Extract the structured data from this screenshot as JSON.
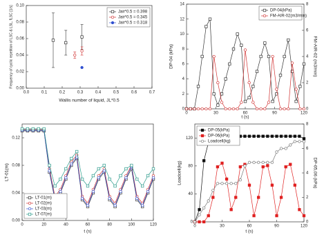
{
  "chart_data": [
    {
      "type": "scatter",
      "x_label": "Wallis number of liquid, JL*0.5",
      "y_label": "Frequency of cyclic repetition of LSC & LSL, fLSC [1/s]",
      "xlim": [
        0.0,
        0.7
      ],
      "xticks": [
        {
          "value": 0.0,
          "label": "0.0"
        },
        0.1,
        0.2,
        0.3,
        0.4,
        0.5,
        0.6,
        0.7
      ],
      "ylim": [
        0.0,
        0.1
      ],
      "yticks": [
        {
          "value": 0.0,
          "label": "0.00"
        },
        0.02,
        0.04,
        0.06,
        0.08,
        {
          "value": 0.1,
          "label": "0.10"
        }
      ],
      "legend": "upper right",
      "series": [
        {
          "name": "Jair*0.5 = 0.398",
          "color": "#333333",
          "marker": "square",
          "x": [
            0.15,
            0.22,
            0.31
          ],
          "values": [
            0.058,
            0.055,
            0.062
          ],
          "errors": [
            0.033,
            0.015,
            0.015
          ]
        },
        {
          "name": "Jair*0.5 = 0.345",
          "color": "#d03030",
          "marker": "circle",
          "x": [
            0.27,
            0.31
          ],
          "values": [
            0.04,
            0.045
          ],
          "errors": [
            0.004,
            0.005
          ]
        },
        {
          "name": "Jair*0.5 = 0.318",
          "color": "#3050d0",
          "marker": "filled-circle",
          "x": [
            0.31
          ],
          "values": [
            0.025
          ],
          "errors": [
            0
          ]
        }
      ]
    },
    {
      "type": "line",
      "x_label": "t (s)",
      "y_label": "DP-04 (kPa)",
      "y2_label": "FM-AIR-02 (m3/min)",
      "xlim": [
        0,
        120
      ],
      "xticks": [
        0,
        30,
        60,
        90,
        120
      ],
      "ylim": [
        0,
        14
      ],
      "yticks": [
        0,
        2,
        4,
        6,
        8,
        10,
        12,
        14
      ],
      "y2lim": [
        0,
        8
      ],
      "y2ticks": [
        0,
        2,
        4,
        6,
        8
      ],
      "legend": "upper right",
      "x": [
        0,
        4,
        8,
        12,
        16,
        20,
        24,
        28,
        32,
        36,
        40,
        44,
        48,
        52,
        56,
        60,
        64,
        68,
        72,
        76,
        80,
        84,
        88,
        92,
        96,
        100,
        104,
        108,
        112,
        116,
        120
      ],
      "series": [
        {
          "name": "DP-04(kPa)",
          "color": "#333333",
          "marker": "square",
          "values": [
            0,
            0,
            0,
            3,
            7,
            11,
            12,
            2,
            0.5,
            2,
            4,
            6,
            8,
            10,
            8.5,
            1,
            1.5,
            3,
            5,
            7,
            8.8,
            7,
            1,
            2,
            4.5,
            7,
            9.2,
            5,
            1,
            3,
            6
          ]
        },
        {
          "name": "FM-AIR-02(m3/min)",
          "color": "#d03030",
          "marker": "circle",
          "axis": "y2",
          "values": [
            0,
            0,
            0,
            0,
            0,
            0,
            0,
            4,
            2,
            0.5,
            0,
            0,
            0,
            0,
            0.5,
            4.5,
            2,
            0.5,
            0,
            0,
            0,
            0.5,
            4,
            1.5,
            0,
            0,
            0,
            3.5,
            1.5,
            0,
            0
          ]
        }
      ]
    },
    {
      "type": "line",
      "x_label": "t (s)",
      "y_label": "LT-01(m)",
      "xlim": [
        0,
        120
      ],
      "xticks": [
        0,
        20,
        40,
        60,
        80,
        100,
        120
      ],
      "ylim": [
        0,
        0.14
      ],
      "yticks": [
        {
          "value": 0,
          "label": "0.00"
        },
        0.04,
        0.08,
        0.12
      ],
      "legend": "lower left",
      "x": [
        0,
        5,
        10,
        15,
        20,
        25,
        30,
        35,
        40,
        45,
        50,
        55,
        60,
        65,
        70,
        75,
        80,
        85,
        90,
        95,
        100,
        105,
        110,
        115,
        120
      ],
      "series": [
        {
          "name": "LT-01(m)",
          "color": "#333333",
          "marker": "square",
          "values": [
            0.13,
            0.13,
            0.13,
            0.13,
            0.13,
            0.07,
            0.03,
            0.04,
            0.06,
            0.08,
            0.09,
            0.03,
            0.02,
            0.04,
            0.06,
            0.07,
            0.03,
            0.02,
            0.04,
            0.06,
            0.075,
            0.03,
            0.02,
            0.04,
            0.06
          ]
        },
        {
          "name": "LT-02(m)",
          "color": "#d03030",
          "marker": "circle",
          "values": [
            0.132,
            0.132,
            0.132,
            0.132,
            0.132,
            0.075,
            0.035,
            0.045,
            0.065,
            0.085,
            0.095,
            0.035,
            0.025,
            0.045,
            0.065,
            0.075,
            0.035,
            0.025,
            0.045,
            0.065,
            0.08,
            0.035,
            0.025,
            0.045,
            0.065
          ]
        },
        {
          "name": "LT-03(m)",
          "color": "#3050d0",
          "marker": "circle",
          "values": [
            0.131,
            0.131,
            0.131,
            0.131,
            0.131,
            0.072,
            0.032,
            0.042,
            0.062,
            0.082,
            0.092,
            0.032,
            0.022,
            0.042,
            0.062,
            0.072,
            0.032,
            0.022,
            0.042,
            0.062,
            0.078,
            0.032,
            0.022,
            0.042,
            0.062
          ]
        },
        {
          "name": "LT-07(m)",
          "color": "#2a9a8a",
          "marker": "square",
          "values": [
            0.133,
            0.133,
            0.133,
            0.133,
            0.133,
            0.08,
            0.05,
            0.06,
            0.075,
            0.09,
            0.1,
            0.06,
            0.05,
            0.065,
            0.075,
            0.08,
            0.06,
            0.05,
            0.065,
            0.075,
            0.08,
            0.06,
            0.05,
            0.065,
            0.075
          ]
        }
      ]
    },
    {
      "type": "line",
      "x_label": "t (s)",
      "y_label": "Loadcell(kg)",
      "y2_label": "DP-05,06 (kPa)",
      "xlim": [
        0,
        120
      ],
      "xticks": [
        0,
        30,
        60,
        90,
        120
      ],
      "ylim": [
        0,
        140
      ],
      "yticks": [
        0,
        40,
        80,
        120
      ],
      "y2lim": [
        0,
        8
      ],
      "y2ticks": [
        0,
        2,
        4,
        6,
        8
      ],
      "legend": "upper left",
      "x": [
        0,
        5,
        10,
        15,
        20,
        25,
        30,
        35,
        40,
        45,
        50,
        55,
        60,
        65,
        70,
        75,
        80,
        85,
        90,
        95,
        100,
        105,
        110,
        115,
        120
      ],
      "series": [
        {
          "name": "DP-05(kPa)",
          "color": "#111111",
          "marker": "filled-square",
          "axis": "y2",
          "values": [
            0,
            1,
            5,
            6.5,
            6.8,
            7,
            7,
            7,
            7,
            7.1,
            7,
            7,
            7,
            7,
            7,
            7,
            7,
            7,
            7,
            7,
            7,
            7,
            7,
            7,
            6.8
          ]
        },
        {
          "name": "DP-06(kPa)",
          "color": "#e02020",
          "marker": "filled-square",
          "axis": "y2",
          "values": [
            0,
            0,
            0,
            0.5,
            2,
            4.5,
            4.8,
            3.5,
            1,
            2,
            4.5,
            4.7,
            3,
            0.5,
            2,
            4.5,
            4.6,
            3,
            0.5,
            2,
            4.5,
            4.7,
            3,
            1,
            0.5
          ]
        },
        {
          "name": "Loadcell(kg)",
          "color": "#777777",
          "marker": "circle",
          "values": [
            0,
            10,
            20,
            30,
            45,
            55,
            55,
            55,
            55,
            55,
            60,
            80,
            85,
            85,
            85,
            85,
            85,
            85,
            100,
            105,
            105,
            110,
            115,
            115,
            115
          ]
        }
      ]
    }
  ]
}
